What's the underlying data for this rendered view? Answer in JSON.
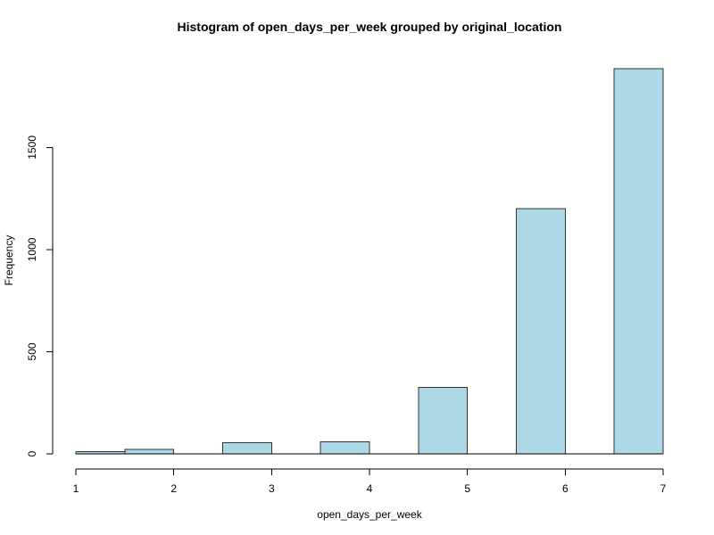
{
  "chart_data": {
    "type": "bar",
    "title": "Histogram of open_days_per_week grouped by original_location",
    "xlabel": "open_days_per_week",
    "ylabel": "Frequency",
    "xlim": [
      1,
      7
    ],
    "ylim": [
      0,
      1890
    ],
    "x_ticks": [
      1,
      2,
      3,
      4,
      5,
      6,
      7
    ],
    "y_ticks": [
      0,
      500,
      1000,
      1500
    ],
    "bins": [
      {
        "start": 1.0,
        "end": 1.5,
        "value": 12
      },
      {
        "start": 1.5,
        "end": 2.0,
        "value": 22
      },
      {
        "start": 2.5,
        "end": 3.0,
        "value": 55
      },
      {
        "start": 3.5,
        "end": 4.0,
        "value": 58
      },
      {
        "start": 4.5,
        "end": 5.0,
        "value": 325
      },
      {
        "start": 5.5,
        "end": 6.0,
        "value": 1200
      },
      {
        "start": 6.5,
        "end": 7.0,
        "value": 1885
      }
    ],
    "bar_color": "#ADD8E6",
    "bar_edge_color": "#333333",
    "grid": false,
    "legend": "none"
  }
}
